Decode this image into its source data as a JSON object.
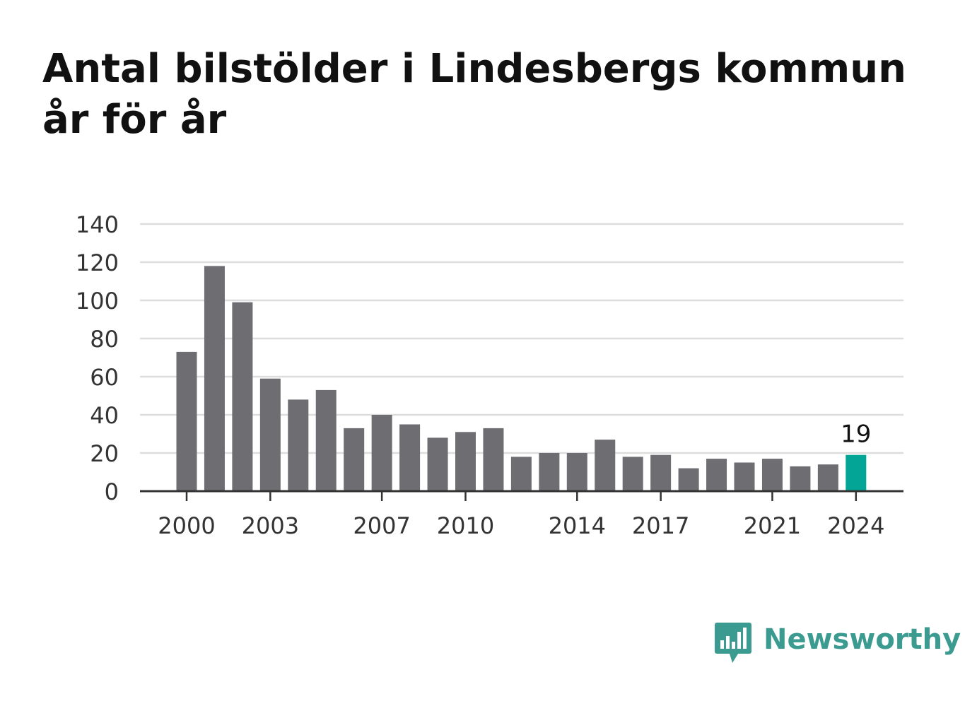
{
  "title": {
    "line1": "Antal bilstölder i Lindesbergs kommun",
    "line2": "år för år"
  },
  "brand": {
    "name": "Newsworthy",
    "logo_icon": "bar-chart-speech-bubble-icon"
  },
  "colors": {
    "bar": "#6e6d72",
    "highlight": "#03a597",
    "grid": "#dddddd",
    "axis": "#333333",
    "text": "#333333",
    "brand": "#3b9b90"
  },
  "chart_data": {
    "type": "bar",
    "categories": [
      2000,
      2001,
      2002,
      2003,
      2004,
      2005,
      2006,
      2007,
      2008,
      2009,
      2010,
      2011,
      2012,
      2013,
      2014,
      2015,
      2016,
      2017,
      2018,
      2019,
      2020,
      2021,
      2022,
      2023,
      2024
    ],
    "values": [
      73,
      118,
      99,
      59,
      48,
      53,
      33,
      40,
      35,
      28,
      31,
      33,
      18,
      20,
      20,
      27,
      18,
      19,
      12,
      17,
      15,
      17,
      13,
      14,
      19
    ],
    "x_tick_labels": [
      "2000",
      "2003",
      "2007",
      "2010",
      "2014",
      "2017",
      "2021",
      "2024"
    ],
    "y_ticks": [
      0,
      20,
      40,
      60,
      80,
      100,
      120,
      140
    ],
    "ylim": [
      0,
      140
    ],
    "highlight_category": 2024,
    "data_label": {
      "category": 2024,
      "text": "19"
    },
    "xlabel": "",
    "ylabel": "",
    "grid": true,
    "legend": "none"
  }
}
